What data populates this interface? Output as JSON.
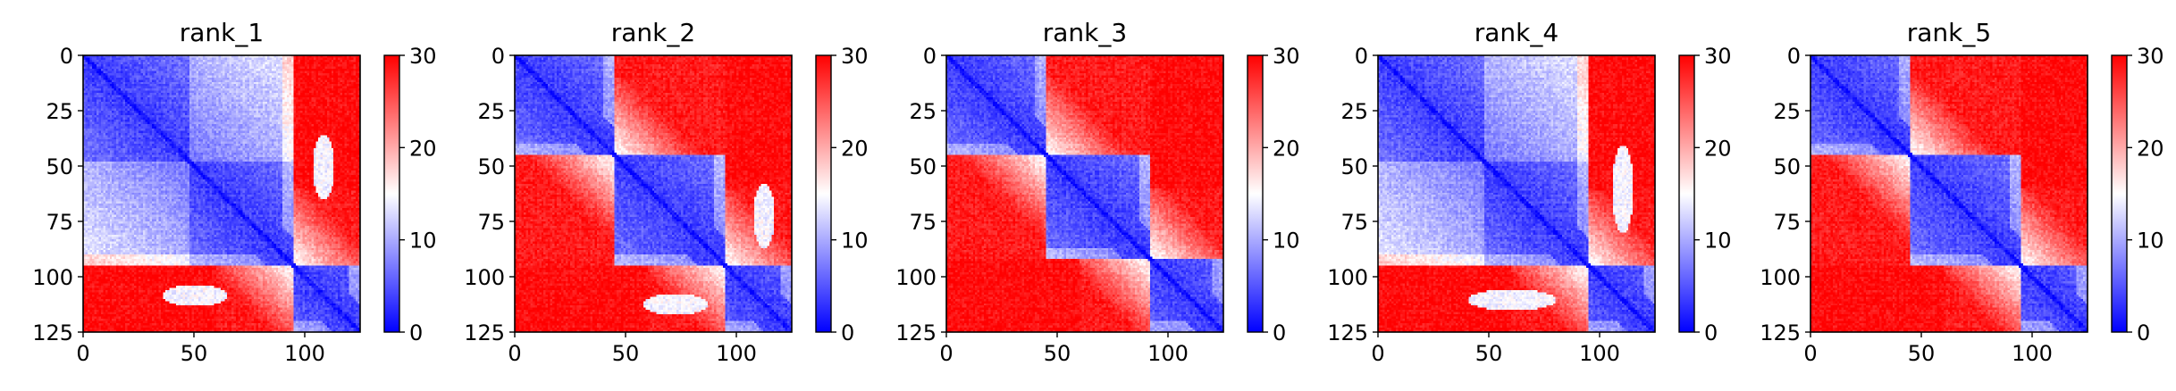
{
  "figure": {
    "background": "#ffffff"
  },
  "chart_data": [
    {
      "type": "heatmap",
      "title": "rank_1",
      "xticks": [
        "0",
        "50",
        "100"
      ],
      "yticks": [
        "0",
        "25",
        "50",
        "75",
        "100",
        "125"
      ],
      "xlim": [
        0,
        125
      ],
      "ylim": [
        125,
        0
      ],
      "colorbar": {
        "ticks": [
          "0",
          "10",
          "20",
          "30"
        ],
        "range": [
          0,
          30
        ],
        "colors": [
          "#0000ff",
          "#ffffff",
          "#ff0000"
        ]
      },
      "structure": {
        "domains": [
          [
            0,
            95
          ],
          [
            95,
            125
          ]
        ],
        "sub_boundary": 48,
        "lobe": {
          "x": 108,
          "y": 50,
          "h": 30
        }
      }
    },
    {
      "type": "heatmap",
      "title": "rank_2",
      "xticks": [
        "0",
        "50",
        "100"
      ],
      "yticks": [
        "0",
        "25",
        "50",
        "75",
        "100",
        "125"
      ],
      "xlim": [
        0,
        125
      ],
      "ylim": [
        125,
        0
      ],
      "colorbar": {
        "ticks": [
          "0",
          "10",
          "20",
          "30"
        ],
        "range": [
          0,
          30
        ],
        "colors": [
          "#0000ff",
          "#ffffff",
          "#ff0000"
        ]
      },
      "structure": {
        "domains": [
          [
            0,
            45
          ],
          [
            45,
            95
          ],
          [
            95,
            125
          ]
        ],
        "sub_boundary": null,
        "lobe": {
          "x": 112,
          "y": 72,
          "h": 30
        }
      }
    },
    {
      "type": "heatmap",
      "title": "rank_3",
      "xticks": [
        "0",
        "50",
        "100"
      ],
      "yticks": [
        "0",
        "25",
        "50",
        "75",
        "100",
        "125"
      ],
      "xlim": [
        0,
        125
      ],
      "ylim": [
        125,
        0
      ],
      "colorbar": {
        "ticks": [
          "0",
          "10",
          "20",
          "30"
        ],
        "range": [
          0,
          30
        ],
        "colors": [
          "#0000ff",
          "#ffffff",
          "#ff0000"
        ]
      },
      "structure": {
        "domains": [
          [
            0,
            45
          ],
          [
            45,
            92
          ],
          [
            92,
            125
          ]
        ],
        "sub_boundary": null,
        "lobe": null
      }
    },
    {
      "type": "heatmap",
      "title": "rank_4",
      "xticks": [
        "0",
        "50",
        "100"
      ],
      "yticks": [
        "0",
        "25",
        "50",
        "75",
        "100",
        "125"
      ],
      "xlim": [
        0,
        125
      ],
      "ylim": [
        125,
        0
      ],
      "colorbar": {
        "ticks": [
          "0",
          "10",
          "20",
          "30"
        ],
        "range": [
          0,
          30
        ],
        "colors": [
          "#0000ff",
          "#ffffff",
          "#ff0000"
        ]
      },
      "structure": {
        "domains": [
          [
            0,
            95
          ],
          [
            95,
            125
          ]
        ],
        "sub_boundary": 48,
        "lobe": {
          "x": 110,
          "y": 60,
          "h": 40
        }
      }
    },
    {
      "type": "heatmap",
      "title": "rank_5",
      "xticks": [
        "0",
        "50",
        "100"
      ],
      "yticks": [
        "0",
        "25",
        "50",
        "75",
        "100",
        "125"
      ],
      "xlim": [
        0,
        125
      ],
      "ylim": [
        125,
        0
      ],
      "colorbar": {
        "ticks": [
          "0",
          "10",
          "20",
          "30"
        ],
        "range": [
          0,
          30
        ],
        "colors": [
          "#0000ff",
          "#ffffff",
          "#ff0000"
        ]
      },
      "structure": {
        "domains": [
          [
            0,
            45
          ],
          [
            45,
            95
          ],
          [
            95,
            125
          ]
        ],
        "sub_boundary": null,
        "lobe": null
      }
    }
  ]
}
